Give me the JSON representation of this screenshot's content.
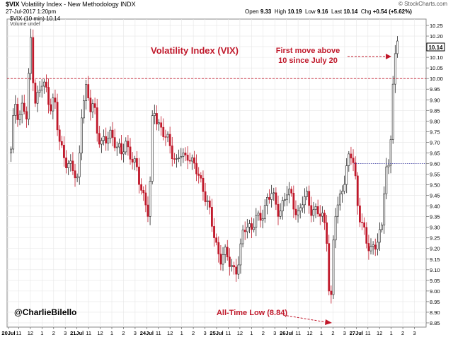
{
  "header": {
    "symbol": "$VIX",
    "name": "Volatility Index - New Methodology",
    "exchange": "INDX",
    "timestamp": "27-Jul-2017 1:20pm",
    "source": "© StockCharts.com",
    "legend_line1": "$VIX (10 min) 10.14",
    "legend_line2": "Volume undef",
    "quote": {
      "open_label": "Open",
      "open": "9.33",
      "high_label": "High",
      "high": "10.19",
      "low_label": "Low",
      "low": "9.16",
      "last_label": "Last",
      "last": "10.14",
      "chg_label": "Chg",
      "chg": "+0.54 (+5.62%)"
    }
  },
  "colors": {
    "up": "#222222",
    "down": "#c0182a",
    "annotation": "#c0182a",
    "ref_line_10": "#c0182a",
    "ref_line_960": "#3a3aa8",
    "grid": "#e6e6e6"
  },
  "annotations": {
    "title": "Volatility Index (VIX)",
    "first_move_line1": "First move above",
    "first_move_line2": "10 since July 20",
    "all_time_low": "All-Time Low (8.84)",
    "author": "@CharlieBilello",
    "last_price_label": "10.14"
  },
  "chart_data": {
    "type": "candlestick",
    "interval": "10 min",
    "ylim": [
      8.83,
      10.28
    ],
    "yticks": [
      8.85,
      8.9,
      8.95,
      9.0,
      9.05,
      9.1,
      9.15,
      9.2,
      9.25,
      9.3,
      9.35,
      9.4,
      9.45,
      9.5,
      9.55,
      9.6,
      9.65,
      9.7,
      9.75,
      9.8,
      9.85,
      9.9,
      9.95,
      10.0,
      10.05,
      10.1,
      10.15,
      10.2,
      10.25
    ],
    "xticks": [
      {
        "label": "20Jul",
        "major": true
      },
      {
        "label": "11",
        "major": false
      },
      {
        "label": "12",
        "major": false
      },
      {
        "label": "1",
        "major": false
      },
      {
        "label": "2",
        "major": false
      },
      {
        "label": "3",
        "major": false
      },
      {
        "label": "21Jul",
        "major": true
      },
      {
        "label": "11",
        "major": false
      },
      {
        "label": "12",
        "major": false
      },
      {
        "label": "1",
        "major": false
      },
      {
        "label": "2",
        "major": false
      },
      {
        "label": "3",
        "major": false
      },
      {
        "label": "24Jul",
        "major": true
      },
      {
        "label": "11",
        "major": false
      },
      {
        "label": "12",
        "major": false
      },
      {
        "label": "1",
        "major": false
      },
      {
        "label": "2",
        "major": false
      },
      {
        "label": "3",
        "major": false
      },
      {
        "label": "25Jul",
        "major": true
      },
      {
        "label": "11",
        "major": false
      },
      {
        "label": "12",
        "major": false
      },
      {
        "label": "1",
        "major": false
      },
      {
        "label": "2",
        "major": false
      },
      {
        "label": "3",
        "major": false
      },
      {
        "label": "26Jul",
        "major": true
      },
      {
        "label": "11",
        "major": false
      },
      {
        "label": "12",
        "major": false
      },
      {
        "label": "1",
        "major": false
      },
      {
        "label": "2",
        "major": false
      },
      {
        "label": "3",
        "major": false
      },
      {
        "label": "27Jul",
        "major": true
      },
      {
        "label": "11",
        "major": false
      },
      {
        "label": "12",
        "major": false
      },
      {
        "label": "1",
        "major": false
      },
      {
        "label": "2",
        "major": false
      },
      {
        "label": "3",
        "major": false
      }
    ],
    "reference_lines": [
      {
        "value": 10.0,
        "style": "dashed",
        "color": "#c0182a"
      },
      {
        "value": 9.6,
        "style": "dotted",
        "color": "#3a3aa8"
      }
    ],
    "close_path": [
      9.65,
      9.9,
      9.82,
      9.88,
      9.8,
      10.2,
      9.9,
      9.92,
      9.98,
      9.94,
      9.88,
      9.9,
      9.72,
      9.66,
      9.62,
      9.58,
      9.55,
      9.52,
      9.88,
      9.94,
      9.85,
      9.9,
      9.74,
      9.68,
      9.7,
      9.76,
      9.72,
      9.66,
      9.64,
      9.72,
      9.65,
      9.6,
      9.56,
      9.5,
      9.42,
      9.34,
      9.88,
      9.82,
      9.76,
      9.72,
      9.7,
      9.66,
      9.6,
      9.64,
      9.62,
      9.66,
      9.6,
      9.56,
      9.52,
      9.48,
      9.4,
      9.3,
      9.22,
      9.16,
      9.18,
      9.14,
      9.12,
      9.1,
      9.16,
      9.28,
      9.32,
      9.3,
      9.34,
      9.32,
      9.38,
      9.44,
      9.46,
      9.4,
      9.38,
      9.42,
      9.46,
      9.44,
      9.4,
      9.36,
      9.42,
      9.44,
      9.4,
      9.38,
      9.36,
      9.34,
      9.3,
      8.86,
      9.34,
      9.4,
      9.5,
      9.56,
      9.64,
      9.6,
      9.4,
      9.32,
      9.22,
      9.2,
      9.22,
      9.24,
      9.26,
      9.6,
      9.58,
      10.05,
      10.14
    ]
  }
}
